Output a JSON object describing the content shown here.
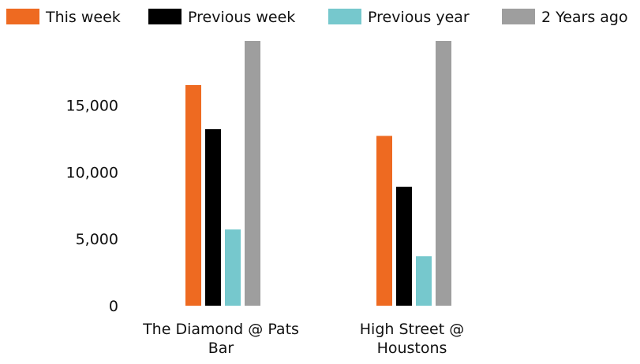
{
  "chart_data": {
    "type": "bar",
    "categories": [
      "The Diamond @ Pats Bar",
      "High Street @ Houstons"
    ],
    "series": [
      {
        "name": "This week",
        "color": "#EE6A21",
        "values": [
          16500,
          12700
        ]
      },
      {
        "name": "Previous week",
        "color": "#000000",
        "values": [
          13200,
          8900
        ]
      },
      {
        "name": "Previous year",
        "color": "#76C8CD",
        "values": [
          5700,
          3700
        ]
      },
      {
        "name": "2 Years ago",
        "color": "#9E9E9E",
        "values": [
          19900,
          19900
        ]
      }
    ],
    "yticks": [
      "0",
      "5,000",
      "10,000",
      "15,000"
    ],
    "ytick_values": [
      0,
      5000,
      10000,
      15000
    ],
    "ylim": [
      0,
      19800
    ],
    "grid": false,
    "legend_position": "top"
  }
}
